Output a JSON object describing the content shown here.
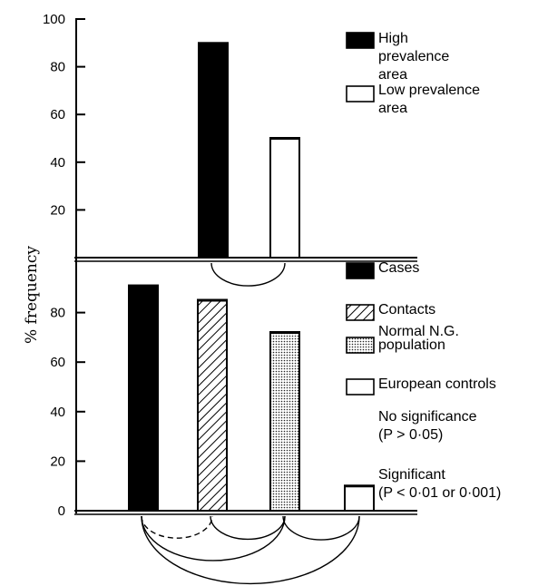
{
  "chart_data": [
    {
      "type": "bar",
      "categories": [
        "High prevalence area",
        "Low prevalence area"
      ],
      "values": [
        90,
        50
      ],
      "ylim": [
        0,
        100
      ],
      "yticks": [
        20,
        40,
        60,
        80,
        100
      ],
      "ylabel": "% frequency",
      "legend": [
        {
          "lines": [
            "High",
            "prevalence",
            "area"
          ],
          "fill": "solid"
        },
        {
          "lines": [
            "Low prevalence",
            "area"
          ],
          "fill": "open"
        }
      ],
      "legend_position": "top-right",
      "comparisons": [
        {
          "from": 0,
          "to": 1,
          "style": "solid"
        }
      ]
    },
    {
      "type": "bar",
      "categories": [
        "Cases",
        "Contacts",
        "Normal N.G. population",
        "European controls"
      ],
      "values": [
        91,
        85,
        72,
        10
      ],
      "ylim": [
        0,
        95
      ],
      "yticks": [
        0,
        20,
        40,
        60,
        80
      ],
      "legend": [
        {
          "lines": [
            "Cases"
          ],
          "fill": "solid"
        },
        {
          "lines": [
            "Contacts"
          ],
          "fill": "hatched"
        },
        {
          "lines": [
            "Normal N.G.",
            "population"
          ],
          "fill": "dotted"
        },
        {
          "lines": [
            "European controls"
          ],
          "fill": "open"
        }
      ],
      "legend_position": "right",
      "significance_key": [
        {
          "lines": [
            "No significance",
            "(P > 0·05)"
          ],
          "style": "dashed"
        },
        {
          "lines": [
            "Significant",
            "(P < 0·01 or 0·001)"
          ],
          "style": "solid"
        }
      ],
      "comparisons": [
        {
          "from": 0,
          "to": 1,
          "style": "dashed"
        },
        {
          "from": 1,
          "to": 2,
          "style": "solid"
        },
        {
          "from": 0,
          "to": 2,
          "style": "solid"
        },
        {
          "from": 2,
          "to": 3,
          "style": "solid"
        },
        {
          "from": 0,
          "to": 3,
          "style": "solid"
        }
      ]
    }
  ]
}
